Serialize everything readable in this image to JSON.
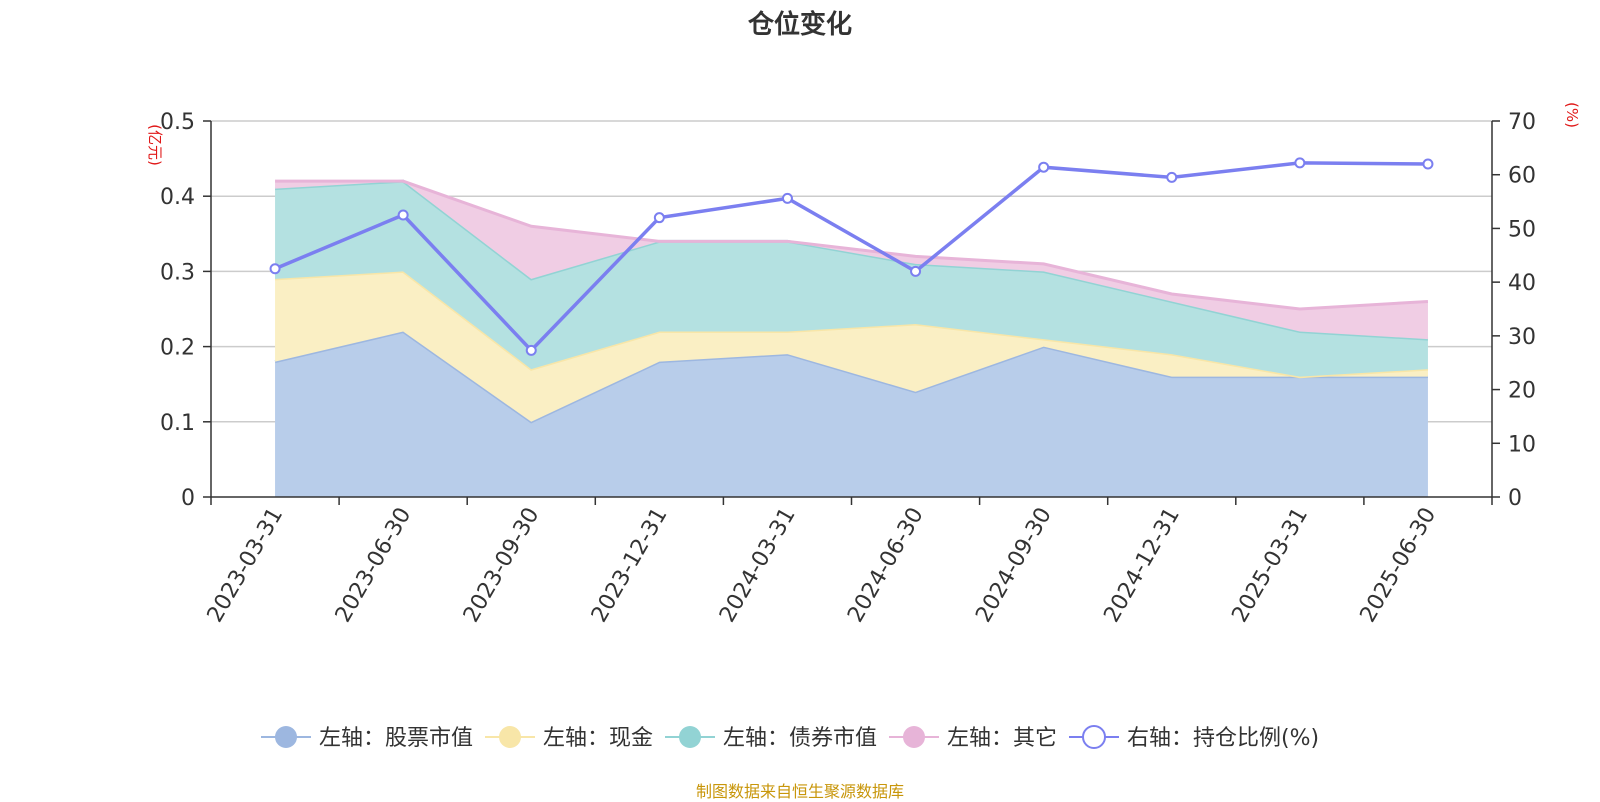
{
  "chart_data": {
    "type": "area",
    "title": "仓位变化",
    "categories": [
      "2023-03-31",
      "2023-06-30",
      "2023-09-30",
      "2023-12-31",
      "2024-03-31",
      "2024-06-30",
      "2024-09-30",
      "2024-12-31",
      "2025-03-31",
      "2025-06-30"
    ],
    "left_axis": {
      "unit": "(亿元)",
      "ylim": [
        0,
        0.5
      ],
      "ticks": [
        "0",
        "0.1",
        "0.2",
        "0.3",
        "0.4",
        "0.5"
      ]
    },
    "right_axis": {
      "unit": "(%)",
      "ylim": [
        0,
        70
      ],
      "ticks": [
        "0",
        "10",
        "20",
        "30",
        "40",
        "50",
        "60",
        "70"
      ]
    },
    "stacked": true,
    "grid": true,
    "legend_position": "bottom",
    "series": [
      {
        "name": "左轴：股票市值",
        "axis": "left",
        "kind": "area",
        "color": "#9db7e0",
        "fill": "#b8cdea",
        "values": [
          0.18,
          0.22,
          0.1,
          0.18,
          0.19,
          0.14,
          0.2,
          0.16,
          0.16,
          0.16
        ]
      },
      {
        "name": "左轴：现金",
        "axis": "left",
        "kind": "area",
        "color": "#f8e6a8",
        "fill": "#faefc4",
        "values": [
          0.11,
          0.08,
          0.07,
          0.04,
          0.03,
          0.09,
          0.01,
          0.03,
          0.0,
          0.01
        ]
      },
      {
        "name": "左轴：债券市值",
        "axis": "left",
        "kind": "area",
        "color": "#92d3d4",
        "fill": "#b4e1e1",
        "values": [
          0.12,
          0.12,
          0.12,
          0.12,
          0.12,
          0.08,
          0.09,
          0.07,
          0.06,
          0.04
        ]
      },
      {
        "name": "左轴：其它",
        "axis": "left",
        "kind": "area",
        "color": "#e7b4d8",
        "fill": "#f0cde4",
        "values": [
          0.01,
          0.0,
          0.07,
          0.0,
          0.0,
          0.01,
          0.01,
          0.01,
          0.03,
          0.05
        ]
      },
      {
        "name": "右轴：持仓比例(%)",
        "axis": "right",
        "kind": "line",
        "color": "#7b7ff0",
        "values": [
          42.5,
          52.5,
          27.3,
          52.0,
          55.6,
          42.0,
          61.4,
          59.5,
          62.2,
          62.0
        ]
      }
    ],
    "source_note": "制图数据来自恒生聚源数据库"
  }
}
